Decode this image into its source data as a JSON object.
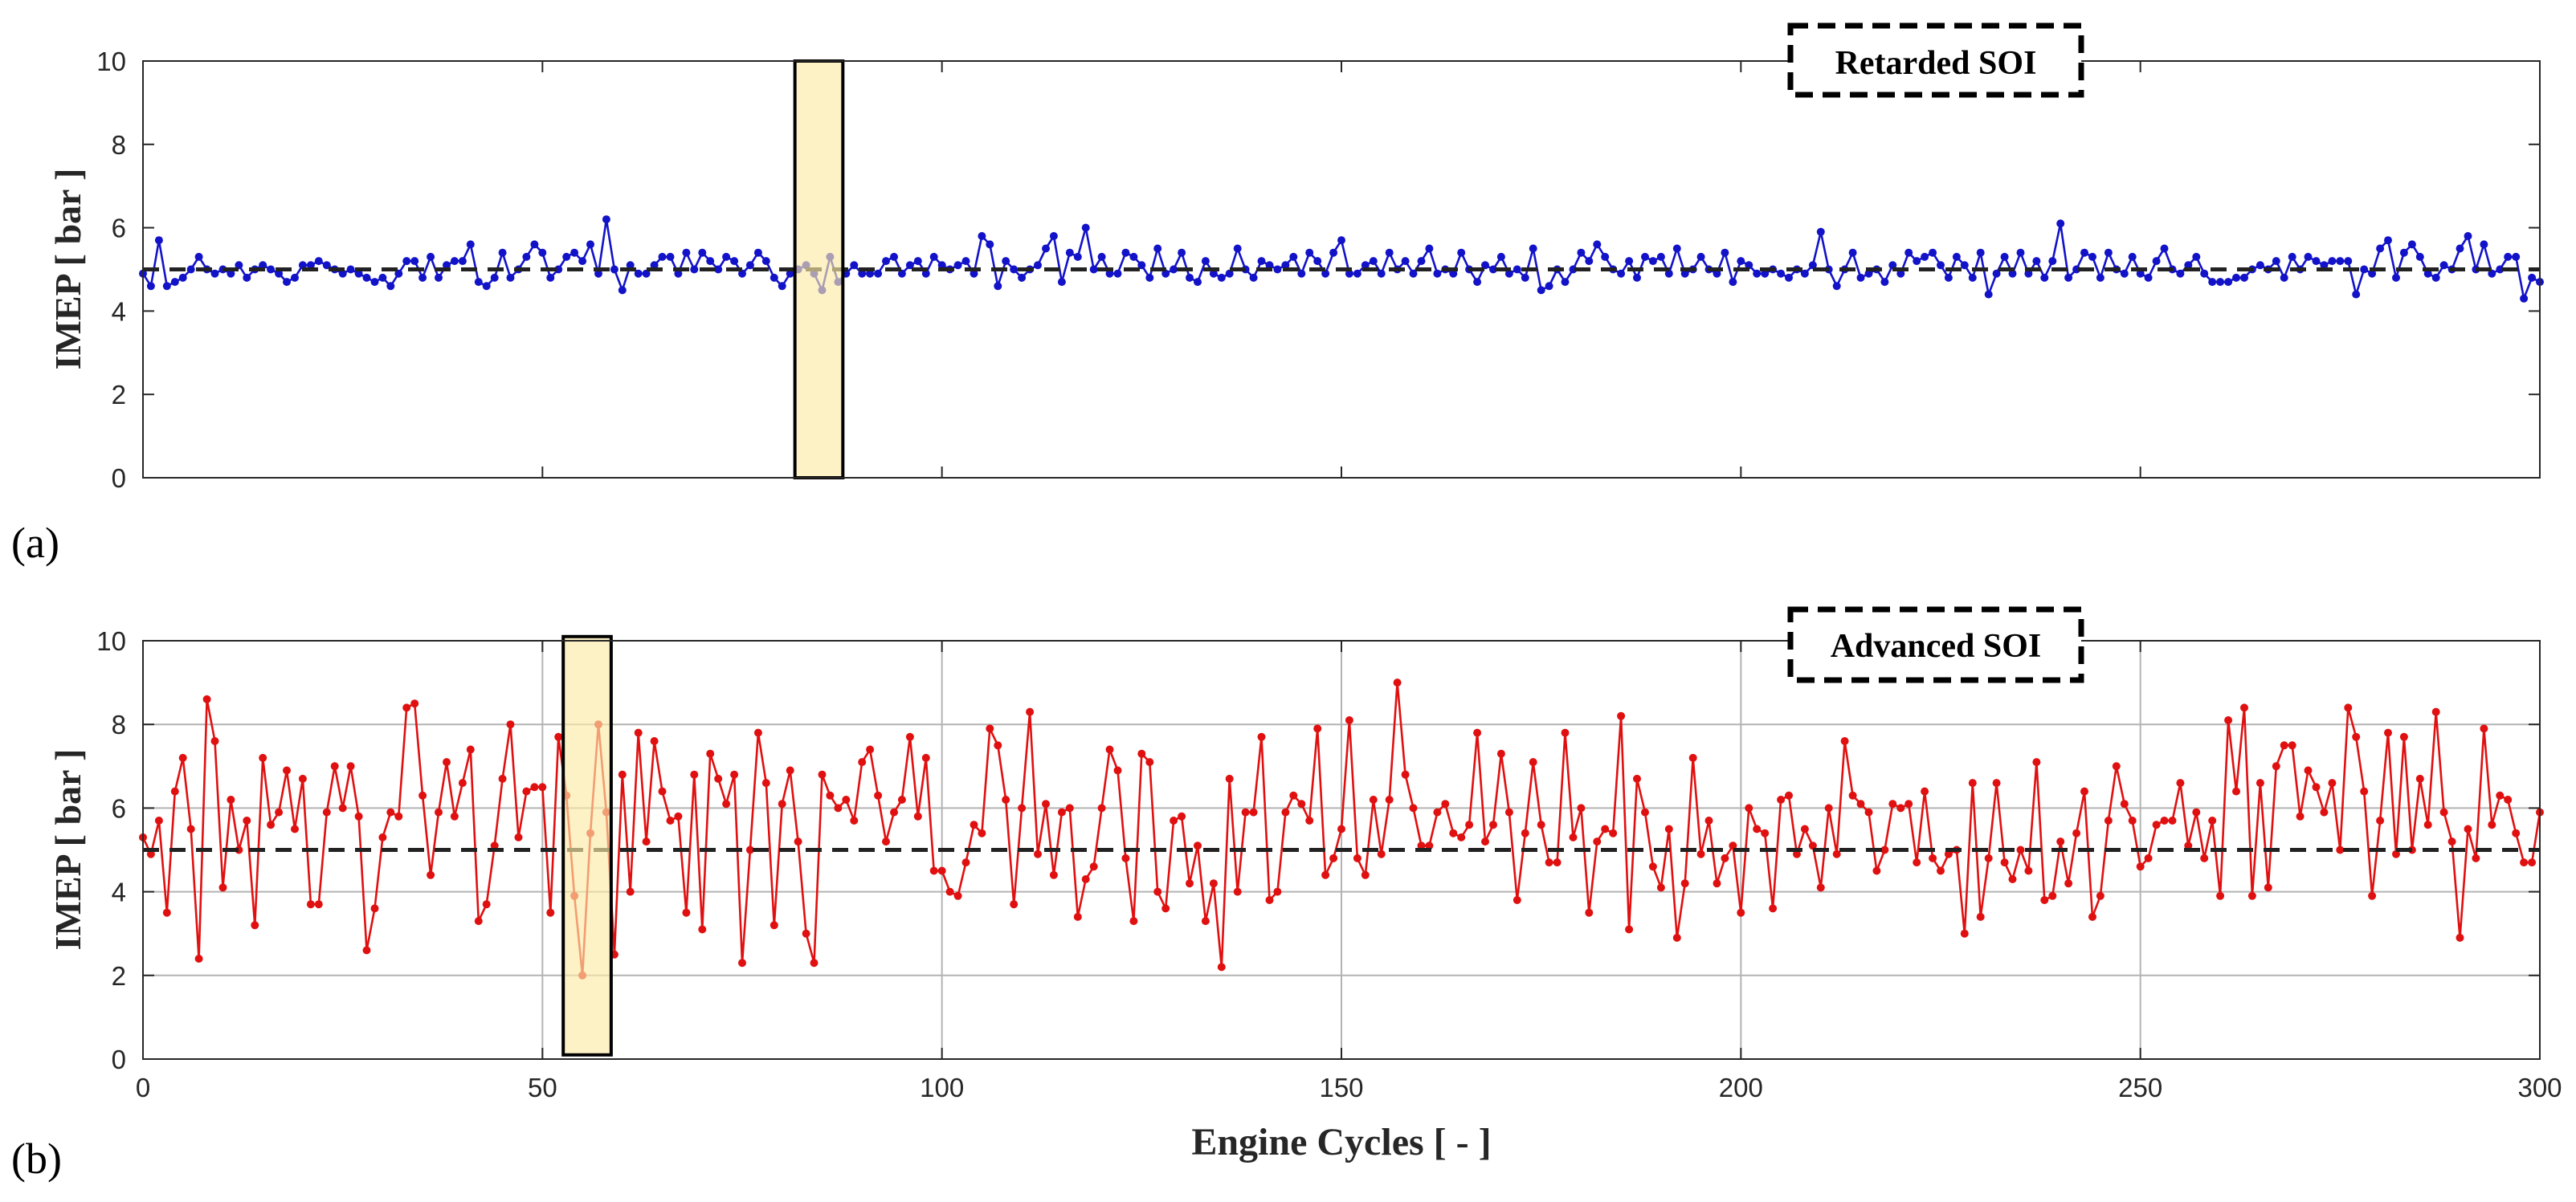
{
  "chart_data": [
    {
      "type": "line",
      "panel_label": "(a)",
      "ylabel": "IMEP [ bar ]",
      "xlim": [
        0,
        300
      ],
      "ylim": [
        0,
        10
      ],
      "xticks": [
        0,
        50,
        100,
        150,
        200,
        250,
        300
      ],
      "yticks": [
        0,
        2,
        4,
        6,
        8,
        10
      ],
      "xtick_labels_shown": false,
      "grid": false,
      "legend_position": "top-right",
      "x_start": 0,
      "x_step": 1,
      "series": [
        {
          "name": "Retarded SOI",
          "color": "#1212c8",
          "values": [
            4.9,
            4.6,
            5.7,
            4.6,
            4.7,
            4.8,
            5.0,
            5.3,
            5.0,
            4.9,
            5.0,
            4.9,
            5.1,
            4.8,
            5.0,
            5.1,
            5.0,
            4.9,
            4.7,
            4.8,
            5.1,
            5.1,
            5.2,
            5.1,
            5.0,
            4.9,
            5.0,
            4.9,
            4.8,
            4.7,
            4.8,
            4.6,
            4.9,
            5.2,
            5.2,
            4.8,
            5.3,
            4.8,
            5.1,
            5.2,
            5.2,
            5.6,
            4.7,
            4.6,
            4.8,
            5.4,
            4.8,
            5.0,
            5.3,
            5.6,
            5.4,
            4.8,
            5.0,
            5.3,
            5.4,
            5.2,
            5.6,
            4.9,
            6.2,
            5.0,
            4.5,
            5.1,
            4.9,
            4.9,
            5.1,
            5.3,
            5.3,
            4.9,
            5.4,
            5.0,
            5.4,
            5.2,
            5.0,
            5.3,
            5.2,
            4.9,
            5.1,
            5.4,
            5.2,
            4.8,
            4.6,
            4.9,
            5.0,
            5.1,
            4.9,
            4.5,
            5.3,
            4.7,
            4.9,
            5.1,
            4.9,
            4.9,
            4.9,
            5.2,
            5.3,
            4.9,
            5.1,
            5.2,
            4.9,
            5.3,
            5.1,
            5.0,
            5.1,
            5.2,
            4.9,
            5.8,
            5.6,
            4.6,
            5.2,
            5.0,
            4.8,
            5.0,
            5.1,
            5.5,
            5.8,
            4.7,
            5.4,
            5.3,
            6.0,
            5.0,
            5.3,
            4.9,
            4.9,
            5.4,
            5.3,
            5.1,
            4.8,
            5.5,
            4.9,
            5.0,
            5.4,
            4.8,
            4.7,
            5.2,
            4.9,
            4.8,
            4.9,
            5.5,
            5.0,
            4.8,
            5.2,
            5.1,
            5.0,
            5.1,
            5.3,
            4.9,
            5.4,
            5.2,
            4.9,
            5.4,
            5.7,
            4.9,
            4.9,
            5.1,
            5.2,
            4.9,
            5.4,
            5.0,
            5.2,
            4.9,
            5.2,
            5.5,
            4.9,
            5.0,
            4.9,
            5.4,
            5.0,
            4.7,
            5.1,
            5.0,
            5.3,
            4.9,
            5.0,
            4.8,
            5.5,
            4.5,
            4.6,
            5.0,
            4.7,
            5.0,
            5.4,
            5.2,
            5.6,
            5.3,
            5.0,
            4.9,
            5.2,
            4.8,
            5.3,
            5.2,
            5.3,
            4.9,
            5.5,
            4.9,
            5.0,
            5.3,
            5.0,
            4.9,
            5.4,
            4.7,
            5.2,
            5.1,
            4.9,
            4.9,
            5.0,
            4.9,
            4.8,
            5.0,
            4.9,
            5.1,
            5.9,
            5.0,
            4.6,
            5.0,
            5.4,
            4.8,
            4.9,
            5.0,
            4.7,
            5.1,
            4.9,
            5.4,
            5.2,
            5.3,
            5.4,
            5.1,
            4.8,
            5.3,
            5.1,
            4.8,
            5.4,
            4.4,
            4.9,
            5.3,
            4.9,
            5.4,
            4.9,
            5.2,
            4.8,
            5.2,
            6.1,
            4.8,
            5.0,
            5.4,
            5.3,
            4.8,
            5.4,
            5.0,
            4.9,
            5.3,
            4.9,
            4.8,
            5.2,
            5.5,
            5.0,
            4.9,
            5.1,
            5.3,
            4.9,
            4.7,
            4.7,
            4.7,
            4.8,
            4.8,
            5.0,
            5.1,
            5.0,
            5.2,
            4.8,
            5.3,
            5.0,
            5.3,
            5.2,
            5.1,
            5.2,
            5.2,
            5.2,
            4.4,
            5.0,
            4.9,
            5.5,
            5.7,
            4.8,
            5.4,
            5.6,
            5.3,
            4.9,
            4.8,
            5.1,
            5.0,
            5.5,
            5.8,
            5.0,
            5.6,
            4.9,
            5.0,
            5.3,
            5.3,
            4.3,
            4.8,
            4.7
          ]
        }
      ],
      "reference_line": {
        "y": 5,
        "color": "#222222"
      },
      "highlight": {
        "x": [
          81.6,
          87.6
        ],
        "y": [
          0,
          10
        ],
        "color": "#fce9a8"
      }
    },
    {
      "type": "line",
      "panel_label": "(b)",
      "xlabel": "Engine Cycles [ - ]",
      "ylabel": "IMEP [ bar ]",
      "xlim": [
        0,
        300
      ],
      "ylim": [
        0,
        10
      ],
      "xticks": [
        0,
        50,
        100,
        150,
        200,
        250,
        300
      ],
      "yticks": [
        0,
        2,
        4,
        6,
        8,
        10
      ],
      "xtick_labels_shown": true,
      "grid": true,
      "legend_position": "top-right",
      "x_start": 0,
      "x_step": 1,
      "series": [
        {
          "name": "Advanced SOI",
          "color": "#e01010",
          "values": [
            5.3,
            4.9,
            5.7,
            3.5,
            6.4,
            7.2,
            5.5,
            2.4,
            8.6,
            7.6,
            4.1,
            6.2,
            5.0,
            5.7,
            3.2,
            7.2,
            5.6,
            5.9,
            6.9,
            5.5,
            6.7,
            3.7,
            3.7,
            5.9,
            7.0,
            6.0,
            7.0,
            5.8,
            2.6,
            3.6,
            5.3,
            5.9,
            5.8,
            8.4,
            8.5,
            6.3,
            4.4,
            5.9,
            7.1,
            5.8,
            6.6,
            7.4,
            3.3,
            3.7,
            5.1,
            6.7,
            8.0,
            5.3,
            6.4,
            6.5,
            6.5,
            3.5,
            7.7,
            6.3,
            3.9,
            2.0,
            5.4,
            8.0,
            5.9,
            2.5,
            6.8,
            4.0,
            7.8,
            5.2,
            7.6,
            6.4,
            5.7,
            5.8,
            3.5,
            6.8,
            3.1,
            7.3,
            6.7,
            6.1,
            6.8,
            2.3,
            5.0,
            7.8,
            6.6,
            3.2,
            6.1,
            6.9,
            5.2,
            3.0,
            2.3,
            6.8,
            6.3,
            6.0,
            6.2,
            5.7,
            7.1,
            7.4,
            6.3,
            5.2,
            5.9,
            6.2,
            7.7,
            5.8,
            7.2,
            4.5,
            4.5,
            4.0,
            3.9,
            4.7,
            5.6,
            5.4,
            7.9,
            7.5,
            6.2,
            3.7,
            6.0,
            8.3,
            4.9,
            6.1,
            4.4,
            5.9,
            6.0,
            3.4,
            4.3,
            4.6,
            6.0,
            7.4,
            6.9,
            4.8,
            3.3,
            7.3,
            7.1,
            4.0,
            3.6,
            5.7,
            5.8,
            4.2,
            5.1,
            3.3,
            4.2,
            2.2,
            6.7,
            4.0,
            5.9,
            5.9,
            7.7,
            3.8,
            4.0,
            5.9,
            6.3,
            6.1,
            5.7,
            7.9,
            4.4,
            4.8,
            5.5,
            8.1,
            4.8,
            4.4,
            6.2,
            4.9,
            6.2,
            9.0,
            6.8,
            6.0,
            5.1,
            5.1,
            5.9,
            6.1,
            5.4,
            5.3,
            5.6,
            7.8,
            5.2,
            5.6,
            7.3,
            5.9,
            3.8,
            5.4,
            7.1,
            5.6,
            4.7,
            4.7,
            7.8,
            5.3,
            6.0,
            3.5,
            5.2,
            5.5,
            5.4,
            8.2,
            3.1,
            6.7,
            5.9,
            4.6,
            4.1,
            5.5,
            2.9,
            4.2,
            7.2,
            4.9,
            5.7,
            4.2,
            4.8,
            5.1,
            3.5,
            6.0,
            5.5,
            5.4,
            3.6,
            6.2,
            6.3,
            4.9,
            5.5,
            5.1,
            4.1,
            6.0,
            4.9,
            7.6,
            6.3,
            6.1,
            5.9,
            4.5,
            5.0,
            6.1,
            6.0,
            6.1,
            4.7,
            6.4,
            4.8,
            4.5,
            4.9,
            5.0,
            3.0,
            6.6,
            3.4,
            4.8,
            6.6,
            4.7,
            4.3,
            5.0,
            4.5,
            7.1,
            3.8,
            3.9,
            5.2,
            4.2,
            5.4,
            6.4,
            3.4,
            3.9,
            5.7,
            7.0,
            6.1,
            5.7,
            4.6,
            4.8,
            5.6,
            5.7,
            5.7,
            6.6,
            5.1,
            5.9,
            4.8,
            5.7,
            3.9,
            8.1,
            6.4,
            8.4,
            3.9,
            6.6,
            4.1,
            7.0,
            7.5,
            7.5,
            5.8,
            6.9,
            6.5,
            5.9,
            6.6,
            5.0,
            8.4,
            7.7,
            6.4,
            3.9,
            5.7,
            7.8,
            4.9,
            7.7,
            5.0,
            6.7,
            5.6,
            8.3,
            5.9,
            5.2,
            2.9,
            5.5,
            4.8,
            7.9,
            5.6,
            6.3,
            6.2,
            5.4,
            4.7,
            4.7,
            5.9
          ]
        }
      ],
      "reference_line": {
        "y": 5,
        "color": "#222222"
      },
      "highlight": {
        "x": [
          52.6,
          58.6
        ],
        "y": [
          0.1,
          10.1
        ],
        "color": "#fce9a8"
      }
    }
  ]
}
